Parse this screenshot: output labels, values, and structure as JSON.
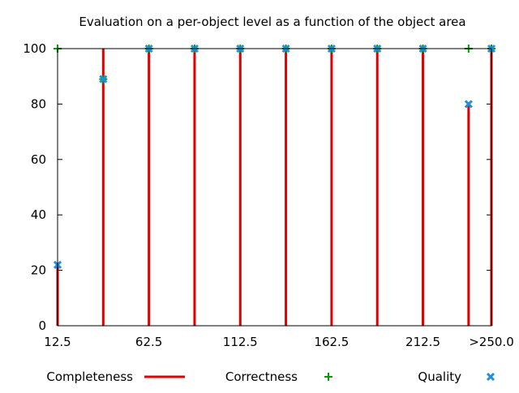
{
  "chart_data": {
    "type": "scatter",
    "title": "Evaluation on a per-object level as a function of the object area",
    "xlabel": "",
    "ylabel": "",
    "xlim": [
      12.5,
      250
    ],
    "ylim": [
      0,
      100
    ],
    "grid": false,
    "legend_position": "bottom",
    "x": [
      12.5,
      37.5,
      62.5,
      87.5,
      112.5,
      137.5,
      162.5,
      187.5,
      212.5,
      237.5,
      250
    ],
    "xticks": [
      {
        "value": 12.5,
        "label": "12.5"
      },
      {
        "value": 62.5,
        "label": "62.5"
      },
      {
        "value": 112.5,
        "label": "112.5"
      },
      {
        "value": 162.5,
        "label": "162.5"
      },
      {
        "value": 212.5,
        "label": "212.5"
      },
      {
        "value": 250,
        "label": ">250.0"
      }
    ],
    "yticks": [
      0,
      20,
      40,
      60,
      80,
      100
    ],
    "series": [
      {
        "name": "Completeness",
        "style": "impulses",
        "color": "#e00000",
        "values": [
          22,
          100,
          100,
          100,
          100,
          100,
          100,
          100,
          100,
          80,
          100
        ]
      },
      {
        "name": "Correctness",
        "style": "plus",
        "color": "#00a000",
        "values": [
          100,
          89,
          100,
          100,
          100,
          100,
          100,
          100,
          100,
          100,
          100
        ]
      },
      {
        "name": "Quality",
        "style": "cross",
        "color": "#1e8ee0",
        "values": [
          22,
          89,
          100,
          100,
          100,
          100,
          100,
          100,
          100,
          80,
          100
        ]
      }
    ]
  }
}
